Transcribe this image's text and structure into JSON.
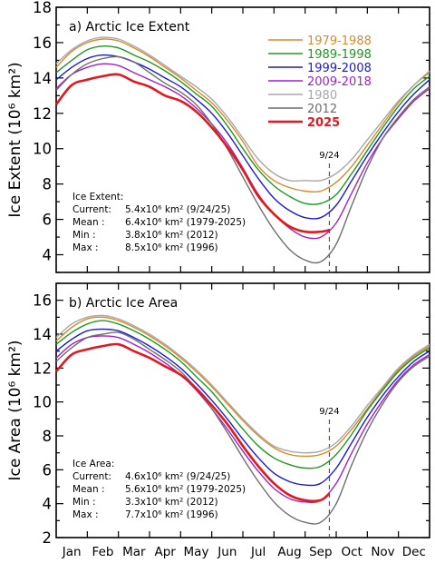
{
  "colors": {
    "1979-1988": "#d98a2b",
    "1989-1998": "#1e9a1e",
    "1999-2008": "#1a1ad6",
    "2009-2018": "#a020c8",
    "1980": "#a8a8a8",
    "2012": "#6e6e6e",
    "2025": "#e0191f"
  },
  "chart_data": [
    {
      "type": "line",
      "title": "a) Arctic Ice Extent",
      "ylabel": "Ice Extent (10⁶ km²)",
      "ylim": [
        3,
        18
      ],
      "yticks": [
        4,
        6,
        8,
        10,
        12,
        14,
        16,
        18
      ],
      "x": [
        "Jan",
        "Feb",
        "Mar",
        "Apr",
        "May",
        "Jun",
        "Jul",
        "Aug",
        "Sep",
        "Oct",
        "Nov",
        "Dec"
      ],
      "xlabels": [
        "Jan",
        "Feb",
        "Mar",
        "Apr",
        "May",
        "Jun",
        "Jul",
        "Aug",
        "Sep",
        "Oct",
        "Nov",
        "Dec"
      ],
      "marker_label": "9/24",
      "marker_x": 8.78,
      "legend": [
        "1979-1988",
        "1989-1998",
        "1999-2008",
        "2009-2018",
        "1980",
        "2012",
        "2025"
      ],
      "series": [
        {
          "name": "1979-1988",
          "x": [
            0,
            0.5,
            1,
            1.5,
            2,
            2.5,
            3,
            3.5,
            4,
            4.5,
            5,
            5.5,
            6,
            6.5,
            7,
            7.5,
            8,
            8.5,
            9,
            9.5,
            10,
            10.5,
            11,
            11.5,
            12
          ],
          "values": [
            14.6,
            15.5,
            16.0,
            16.2,
            16.1,
            15.7,
            15.2,
            14.6,
            14.0,
            13.3,
            12.6,
            11.6,
            10.4,
            9.0,
            8.2,
            7.8,
            7.6,
            7.6,
            8.1,
            9.0,
            10.2,
            11.4,
            12.6,
            13.6,
            14.3
          ]
        },
        {
          "name": "1989-1998",
          "x": [
            0,
            0.5,
            1,
            1.5,
            2,
            2.5,
            3,
            3.5,
            4,
            4.5,
            5,
            5.5,
            6,
            6.5,
            7,
            7.5,
            8,
            8.5,
            9,
            9.5,
            10,
            10.5,
            11,
            11.5,
            12
          ],
          "values": [
            14.3,
            15.0,
            15.6,
            15.8,
            15.7,
            15.3,
            14.9,
            14.4,
            13.8,
            13.1,
            12.4,
            11.3,
            10.0,
            8.8,
            7.9,
            7.3,
            6.9,
            6.9,
            7.4,
            8.6,
            9.9,
            11.2,
            12.4,
            13.4,
            14.1
          ]
        },
        {
          "name": "1999-2008",
          "x": [
            0,
            0.5,
            1,
            1.5,
            2,
            2.5,
            3,
            3.5,
            4,
            4.5,
            5,
            5.5,
            6,
            6.5,
            7,
            7.5,
            8,
            8.5,
            9,
            9.5,
            10,
            10.5,
            11,
            11.5,
            12
          ],
          "values": [
            13.9,
            14.6,
            15.1,
            15.3,
            15.2,
            14.9,
            14.5,
            14.0,
            13.5,
            12.8,
            12.0,
            10.9,
            9.6,
            8.3,
            7.2,
            6.5,
            6.1,
            6.1,
            6.8,
            8.2,
            9.6,
            10.9,
            12.1,
            13.1,
            13.9
          ]
        },
        {
          "name": "2009-2018",
          "x": [
            0,
            0.5,
            1,
            1.5,
            2,
            2.5,
            3,
            3.5,
            4,
            4.5,
            5,
            5.5,
            6,
            6.5,
            7,
            7.5,
            8,
            8.5,
            9,
            9.5,
            10,
            10.5,
            11,
            11.5,
            12
          ],
          "values": [
            13.4,
            14.2,
            14.6,
            14.8,
            14.7,
            14.3,
            13.9,
            13.5,
            13.0,
            12.3,
            11.4,
            10.3,
            8.9,
            7.4,
            6.3,
            5.5,
            5.0,
            5.0,
            5.8,
            7.5,
            9.2,
            10.6,
            11.7,
            12.7,
            13.4
          ]
        },
        {
          "name": "1980",
          "x": [
            0,
            0.5,
            1,
            1.5,
            2,
            2.5,
            3,
            3.5,
            4,
            4.5,
            5,
            5.5,
            6,
            6.5,
            7,
            7.5,
            8,
            8.5,
            9,
            9.5,
            10,
            10.5,
            11,
            11.5,
            12
          ],
          "values": [
            14.8,
            15.6,
            16.1,
            16.3,
            16.2,
            15.8,
            15.3,
            14.7,
            14.1,
            13.5,
            12.8,
            11.8,
            10.6,
            9.4,
            8.6,
            8.2,
            8.2,
            8.2,
            8.6,
            9.4,
            10.5,
            11.6,
            12.7,
            13.6,
            14.4
          ]
        },
        {
          "name": "2012",
          "x": [
            0,
            0.5,
            1,
            1.5,
            2,
            2.5,
            3,
            3.5,
            4,
            4.5,
            5,
            5.5,
            6,
            6.5,
            7,
            7.5,
            8,
            8.5,
            9,
            9.5,
            10,
            10.5,
            11,
            11.5,
            12
          ],
          "values": [
            13.3,
            14.2,
            14.8,
            15.1,
            15.2,
            14.9,
            14.3,
            13.7,
            13.2,
            12.5,
            11.4,
            10.0,
            8.4,
            6.8,
            5.4,
            4.3,
            3.7,
            3.6,
            4.6,
            6.8,
            8.9,
            10.6,
            11.8,
            12.8,
            13.5
          ]
        },
        {
          "name": "2025",
          "x": [
            0,
            0.5,
            1,
            1.5,
            2,
            2.5,
            3,
            3.5,
            4,
            4.5,
            5,
            5.5,
            6,
            6.5,
            7,
            7.5,
            8,
            8.5,
            8.78
          ],
          "values": [
            12.5,
            13.6,
            13.9,
            14.1,
            14.2,
            13.8,
            13.5,
            13.0,
            12.7,
            12.1,
            11.2,
            10.1,
            8.8,
            7.3,
            6.3,
            5.6,
            5.3,
            5.3,
            5.4
          ]
        }
      ],
      "stats": {
        "heading": "Ice Extent:",
        "rows": [
          {
            "label": "Current:",
            "value": "5.4x10⁶ km² (9/24/25)"
          },
          {
            "label": "Mean   :",
            "value": "6.4x10⁶ km² (1979-2025)"
          },
          {
            "label": "Min    :",
            "value": "3.8x10⁶ km² (2012)"
          },
          {
            "label": "Max    :",
            "value": "8.5x10⁶ km² (1996)"
          }
        ]
      }
    },
    {
      "type": "line",
      "title": "b) Arctic Ice Area",
      "ylabel": "Ice Area (10⁶ km²)",
      "ylim": [
        2,
        17
      ],
      "yticks": [
        2,
        4,
        6,
        8,
        10,
        12,
        14,
        16
      ],
      "x": [
        "Jan",
        "Feb",
        "Mar",
        "Apr",
        "May",
        "Jun",
        "Jul",
        "Aug",
        "Sep",
        "Oct",
        "Nov",
        "Dec"
      ],
      "xlabels": [
        "Jan",
        "Feb",
        "Mar",
        "Apr",
        "May",
        "Jun",
        "Jul",
        "Aug",
        "Sep",
        "Oct",
        "Nov",
        "Dec"
      ],
      "marker_label": "9/24",
      "marker_x": 8.78,
      "series": [
        {
          "name": "1979-1988",
          "x": [
            0,
            0.5,
            1,
            1.5,
            2,
            2.5,
            3,
            3.5,
            4,
            4.5,
            5,
            5.5,
            6,
            6.5,
            7,
            7.5,
            8,
            8.5,
            9,
            9.5,
            10,
            10.5,
            11,
            11.5,
            12
          ],
          "values": [
            13.6,
            14.4,
            14.9,
            15.0,
            14.8,
            14.4,
            13.9,
            13.3,
            12.6,
            11.8,
            10.9,
            9.9,
            8.9,
            8.0,
            7.3,
            6.9,
            6.8,
            6.9,
            7.4,
            8.4,
            9.6,
            10.8,
            11.9,
            12.7,
            13.3
          ]
        },
        {
          "name": "1989-1998",
          "x": [
            0,
            0.5,
            1,
            1.5,
            2,
            2.5,
            3,
            3.5,
            4,
            4.5,
            5,
            5.5,
            6,
            6.5,
            7,
            7.5,
            8,
            8.5,
            9,
            9.5,
            10,
            10.5,
            11,
            11.5,
            12
          ],
          "values": [
            13.4,
            14.1,
            14.6,
            14.8,
            14.6,
            14.2,
            13.7,
            13.1,
            12.4,
            11.5,
            10.6,
            9.5,
            8.4,
            7.4,
            6.7,
            6.3,
            6.1,
            6.2,
            6.9,
            8.1,
            9.5,
            10.7,
            11.8,
            12.6,
            13.2
          ]
        },
        {
          "name": "1999-2008",
          "x": [
            0,
            0.5,
            1,
            1.5,
            2,
            2.5,
            3,
            3.5,
            4,
            4.5,
            5,
            5.5,
            6,
            6.5,
            7,
            7.5,
            8,
            8.5,
            9,
            9.5,
            10,
            10.5,
            11,
            11.5,
            12
          ],
          "values": [
            13.0,
            13.7,
            14.2,
            14.3,
            14.2,
            13.8,
            13.3,
            12.7,
            12.0,
            11.1,
            10.1,
            9.0,
            7.8,
            6.7,
            5.8,
            5.3,
            5.1,
            5.2,
            6.1,
            7.6,
            9.1,
            10.4,
            11.5,
            12.4,
            13.0
          ]
        },
        {
          "name": "2009-2018",
          "x": [
            0,
            0.5,
            1,
            1.5,
            2,
            2.5,
            3,
            3.5,
            4,
            4.5,
            5,
            5.5,
            6,
            6.5,
            7,
            7.5,
            8,
            8.5,
            9,
            9.5,
            10,
            10.5,
            11,
            11.5,
            12
          ],
          "values": [
            12.6,
            13.4,
            13.8,
            13.9,
            13.8,
            13.4,
            12.9,
            12.3,
            11.6,
            10.7,
            9.6,
            8.4,
            7.1,
            5.9,
            4.9,
            4.3,
            4.1,
            4.2,
            5.2,
            7.0,
            8.7,
            10.1,
            11.3,
            12.2,
            12.8
          ]
        },
        {
          "name": "1980",
          "x": [
            0,
            0.5,
            1,
            1.5,
            2,
            2.5,
            3,
            3.5,
            4,
            4.5,
            5,
            5.5,
            6,
            6.5,
            7,
            7.5,
            8,
            8.5,
            9,
            9.5,
            10,
            10.5,
            11,
            11.5,
            12
          ],
          "values": [
            13.8,
            14.6,
            15.0,
            15.1,
            14.9,
            14.5,
            14.0,
            13.4,
            12.7,
            11.9,
            11.0,
            10.0,
            9.0,
            8.1,
            7.4,
            7.1,
            7.0,
            7.1,
            7.6,
            8.6,
            9.8,
            10.9,
            12.0,
            12.8,
            13.4
          ]
        },
        {
          "name": "2012",
          "x": [
            0,
            0.5,
            1,
            1.5,
            2,
            2.5,
            3,
            3.5,
            4,
            4.5,
            5,
            5.5,
            6,
            6.5,
            7,
            7.5,
            8,
            8.5,
            9,
            9.5,
            10,
            10.5,
            11,
            11.5,
            12
          ],
          "values": [
            12.4,
            13.2,
            13.8,
            14.0,
            14.1,
            13.7,
            13.1,
            12.5,
            11.8,
            10.8,
            9.6,
            8.2,
            6.7,
            5.3,
            4.1,
            3.3,
            2.9,
            2.9,
            4.0,
            6.3,
            8.3,
            9.9,
            11.2,
            12.1,
            12.7
          ]
        },
        {
          "name": "2025",
          "x": [
            0,
            0.5,
            1,
            1.5,
            2,
            2.5,
            3,
            3.5,
            4,
            4.5,
            5,
            5.5,
            6,
            6.5,
            7,
            7.5,
            8,
            8.5,
            8.78
          ],
          "values": [
            11.8,
            12.8,
            13.1,
            13.3,
            13.4,
            13.0,
            12.6,
            12.1,
            11.6,
            10.8,
            9.8,
            8.7,
            7.4,
            6.2,
            5.2,
            4.5,
            4.2,
            4.2,
            4.6
          ]
        }
      ],
      "stats": {
        "heading": "Ice Area:",
        "rows": [
          {
            "label": "Current:",
            "value": "4.6x10⁶ km² (9/24/25)"
          },
          {
            "label": "Mean   :",
            "value": "5.6x10⁶ km² (1979-2025)"
          },
          {
            "label": "Min    :",
            "value": "3.3x10⁶ km² (2012)"
          },
          {
            "label": "Max    :",
            "value": "7.7x10⁶ km² (1996)"
          }
        ]
      }
    }
  ]
}
